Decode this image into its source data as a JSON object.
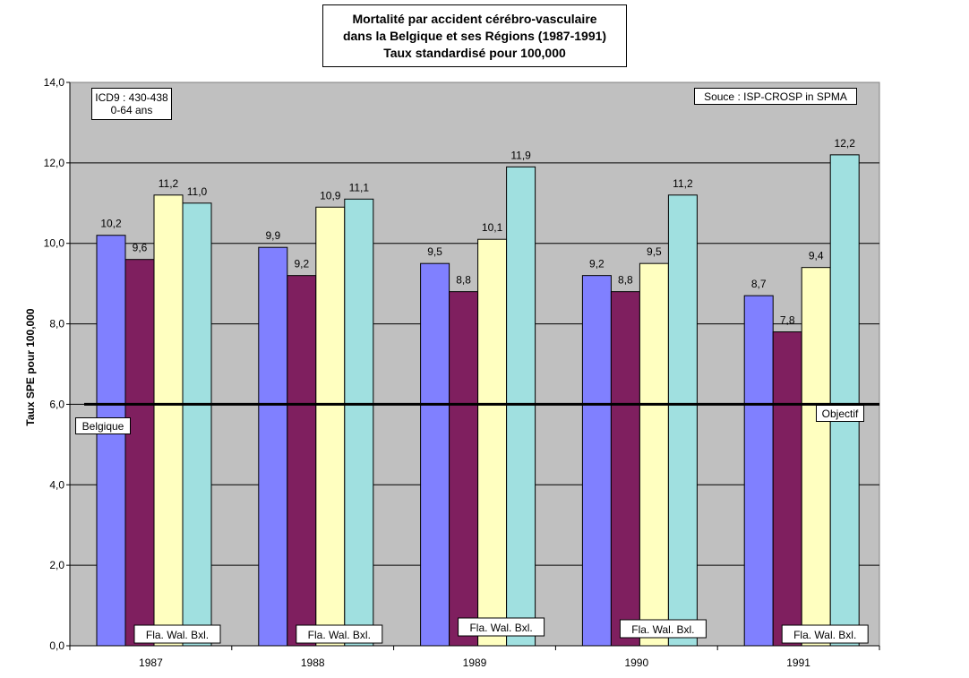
{
  "chart_data": {
    "type": "bar",
    "title": [
      "Mortalité par accident cérébro-vasculaire",
      "dans la Belgique et ses Régions (1987-1991)",
      "Taux standardisé pour 100,000"
    ],
    "ylabel": "Taux SPE pour 100,000",
    "xlabel": "",
    "ylim": [
      0,
      14
    ],
    "yticks": [
      "0,0",
      "2,0",
      "4,0",
      "6,0",
      "8,0",
      "10,0",
      "12,0",
      "14,0"
    ],
    "categories": [
      "1987",
      "1988",
      "1989",
      "1990",
      "1991"
    ],
    "series": [
      {
        "values": [
          10.2,
          9.9,
          9.5,
          9.2,
          8.7
        ],
        "labels": [
          "10,2",
          "9,9",
          "9,5",
          "9,2",
          "8,7"
        ],
        "color": "#8080ff"
      },
      {
        "values": [
          9.6,
          9.2,
          8.8,
          8.8,
          7.8
        ],
        "labels": [
          "9,6",
          "9,2",
          "8,8",
          "8,8",
          "7,8"
        ],
        "color": "#7f1f5f"
      },
      {
        "values": [
          11.2,
          10.9,
          10.1,
          9.5,
          9.4
        ],
        "labels": [
          "11,2",
          "10,9",
          "10,1",
          "9,5",
          "9,4"
        ],
        "color": "#ffffc0"
      },
      {
        "values": [
          11.0,
          11.1,
          11.9,
          11.2,
          12.2
        ],
        "labels": [
          "11,0",
          "11,1",
          "11,9",
          "11,2",
          "12,2"
        ],
        "color": "#a0e0e0"
      }
    ],
    "reference_line": {
      "value": 6.0,
      "color": "#000000"
    },
    "group_label": "Fla. Wal. Bxl.",
    "annotations": {
      "icd": [
        "ICD9 : 430-438",
        "0-64 ans"
      ],
      "source": "Souce : ISP-CROSP in SPMA",
      "belgique": "Belgique",
      "objectif": "Objectif"
    },
    "grid": true,
    "plot_background": "#c0c0c0"
  }
}
